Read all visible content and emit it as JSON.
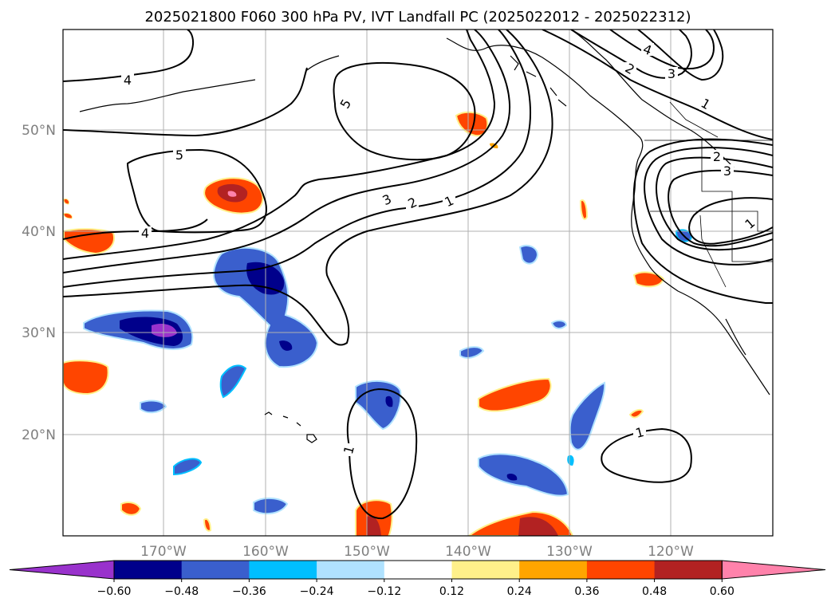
{
  "title": "2025021800 F060 300 hPa PV, IVT Landfall PC (2025022012 - 2025022312)",
  "map": {
    "lon_labels": [
      "170°W",
      "160°W",
      "150°W",
      "140°W",
      "130°W",
      "120°W"
    ],
    "lat_labels": [
      "50°N",
      "40°N",
      "30°N",
      "20°N"
    ],
    "gridlines": true
  },
  "contour_labels": [
    {
      "id": "c4a",
      "text": "4"
    },
    {
      "id": "c5a",
      "text": "5"
    },
    {
      "id": "c5b",
      "text": "5"
    },
    {
      "id": "c4b",
      "text": "4"
    },
    {
      "id": "c3a",
      "text": "3"
    },
    {
      "id": "c2a",
      "text": "2"
    },
    {
      "id": "c1a",
      "text": "1"
    },
    {
      "id": "c4c",
      "text": "4"
    },
    {
      "id": "c3b",
      "text": "3"
    },
    {
      "id": "c2b",
      "text": "2"
    },
    {
      "id": "c1b",
      "text": "1"
    },
    {
      "id": "c2c",
      "text": "2"
    },
    {
      "id": "c3c",
      "text": "3"
    },
    {
      "id": "c1c",
      "text": "1"
    },
    {
      "id": "c1d",
      "text": "1"
    },
    {
      "id": "c1e",
      "text": "1"
    }
  ],
  "colorbar": {
    "ticks": [
      "−0.60",
      "−0.48",
      "−0.36",
      "−0.24",
      "−0.12",
      "0.12",
      "0.24",
      "0.36",
      "0.48",
      "0.60"
    ],
    "colors": [
      "#9932cc",
      "#00008b",
      "#3a5fcd",
      "#00bfff",
      "#b0e2ff",
      "#ffffff",
      "#fff08a",
      "#ffa500",
      "#ff4500",
      "#b22222",
      "#ff82ab"
    ],
    "extend": "both"
  }
}
